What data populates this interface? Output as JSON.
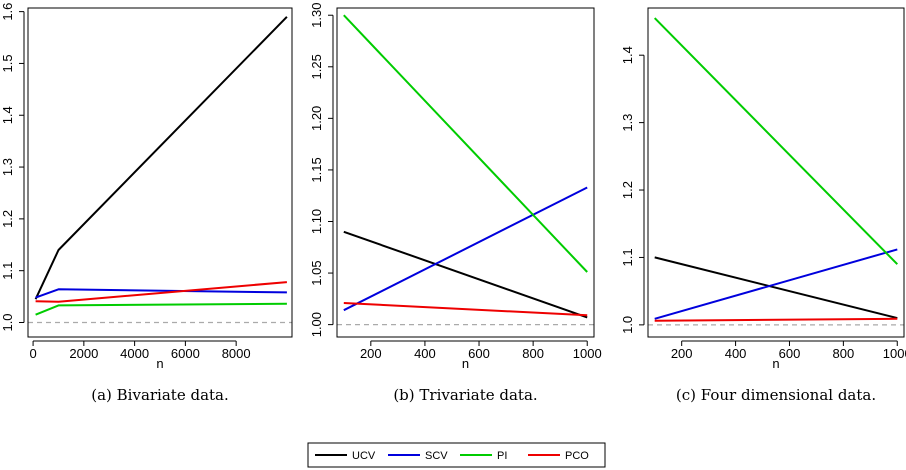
{
  "colors": {
    "UCV": "#000000",
    "SCV": "#0000dd",
    "PI": "#00cc00",
    "PCO": "#ee0000",
    "reference": "#aaaaaa"
  },
  "legend": {
    "entries": [
      {
        "name": "UCV",
        "color": "#000000"
      },
      {
        "name": "SCV",
        "color": "#0000dd"
      },
      {
        "name": "PI",
        "color": "#00cc00"
      },
      {
        "name": "PCO",
        "color": "#ee0000"
      }
    ]
  },
  "chart_data": [
    {
      "type": "line",
      "caption": "(a) Bivariate data.",
      "xlabel": "n",
      "ylabel": "",
      "x": [
        100,
        1000,
        10000
      ],
      "xlim": [
        -200,
        10200
      ],
      "ylim": [
        0.972,
        1.607
      ],
      "xticks": [
        0,
        2000,
        4000,
        6000,
        8000
      ],
      "xtick_labels": [
        "0",
        "2000",
        "4000",
        "6000",
        "8000"
      ],
      "yticks": [
        1.0,
        1.1,
        1.2,
        1.3,
        1.4,
        1.5,
        1.6
      ],
      "ytick_labels": [
        "1.0",
        "1.1",
        "1.2",
        "1.3",
        "1.4",
        "1.5",
        "1.6"
      ],
      "reference_line": 1.0,
      "series": [
        {
          "name": "UCV",
          "values": [
            1.045,
            1.14,
            1.59
          ]
        },
        {
          "name": "SCV",
          "values": [
            1.048,
            1.064,
            1.058
          ]
        },
        {
          "name": "PI",
          "values": [
            1.015,
            1.033,
            1.036
          ]
        },
        {
          "name": "PCO",
          "values": [
            1.041,
            1.04,
            1.078
          ]
        }
      ]
    },
    {
      "type": "line",
      "caption": "(b) Trivariate data.",
      "xlabel": "n",
      "ylabel": "",
      "x": [
        100,
        1000
      ],
      "xlim": [
        75,
        1025
      ],
      "ylim": [
        0.988,
        1.307
      ],
      "xticks": [
        200,
        400,
        600,
        800,
        1000
      ],
      "xtick_labels": [
        "200",
        "400",
        "600",
        "800",
        "1000"
      ],
      "yticks": [
        1.0,
        1.05,
        1.1,
        1.15,
        1.2,
        1.25,
        1.3
      ],
      "ytick_labels": [
        "1.00",
        "1.05",
        "1.10",
        "1.15",
        "1.20",
        "1.25",
        "1.30"
      ],
      "reference_line": 1.0,
      "series": [
        {
          "name": "UCV",
          "values": [
            1.09,
            1.007
          ]
        },
        {
          "name": "SCV",
          "values": [
            1.014,
            1.133
          ]
        },
        {
          "name": "PI",
          "values": [
            1.3,
            1.051
          ]
        },
        {
          "name": "PCO",
          "values": [
            1.021,
            1.009
          ]
        }
      ]
    },
    {
      "type": "line",
      "caption": "(c) Four dimensional data.",
      "xlabel": "n",
      "ylabel": "",
      "x": [
        100,
        1000
      ],
      "xlim": [
        75,
        1025
      ],
      "ylim": [
        0.982,
        1.47
      ],
      "xticks": [
        200,
        400,
        600,
        800,
        1000
      ],
      "xtick_labels": [
        "200",
        "400",
        "600",
        "800",
        "1000"
      ],
      "yticks": [
        1.0,
        1.1,
        1.2,
        1.3,
        1.4
      ],
      "ytick_labels": [
        "1.0",
        "1.1",
        "1.2",
        "1.3",
        "1.4"
      ],
      "reference_line": 1.0,
      "series": [
        {
          "name": "UCV",
          "values": [
            1.1,
            1.01
          ]
        },
        {
          "name": "SCV",
          "values": [
            1.009,
            1.112
          ]
        },
        {
          "name": "PI",
          "values": [
            1.455,
            1.09
          ]
        },
        {
          "name": "PCO",
          "values": [
            1.006,
            1.009
          ]
        }
      ]
    }
  ]
}
